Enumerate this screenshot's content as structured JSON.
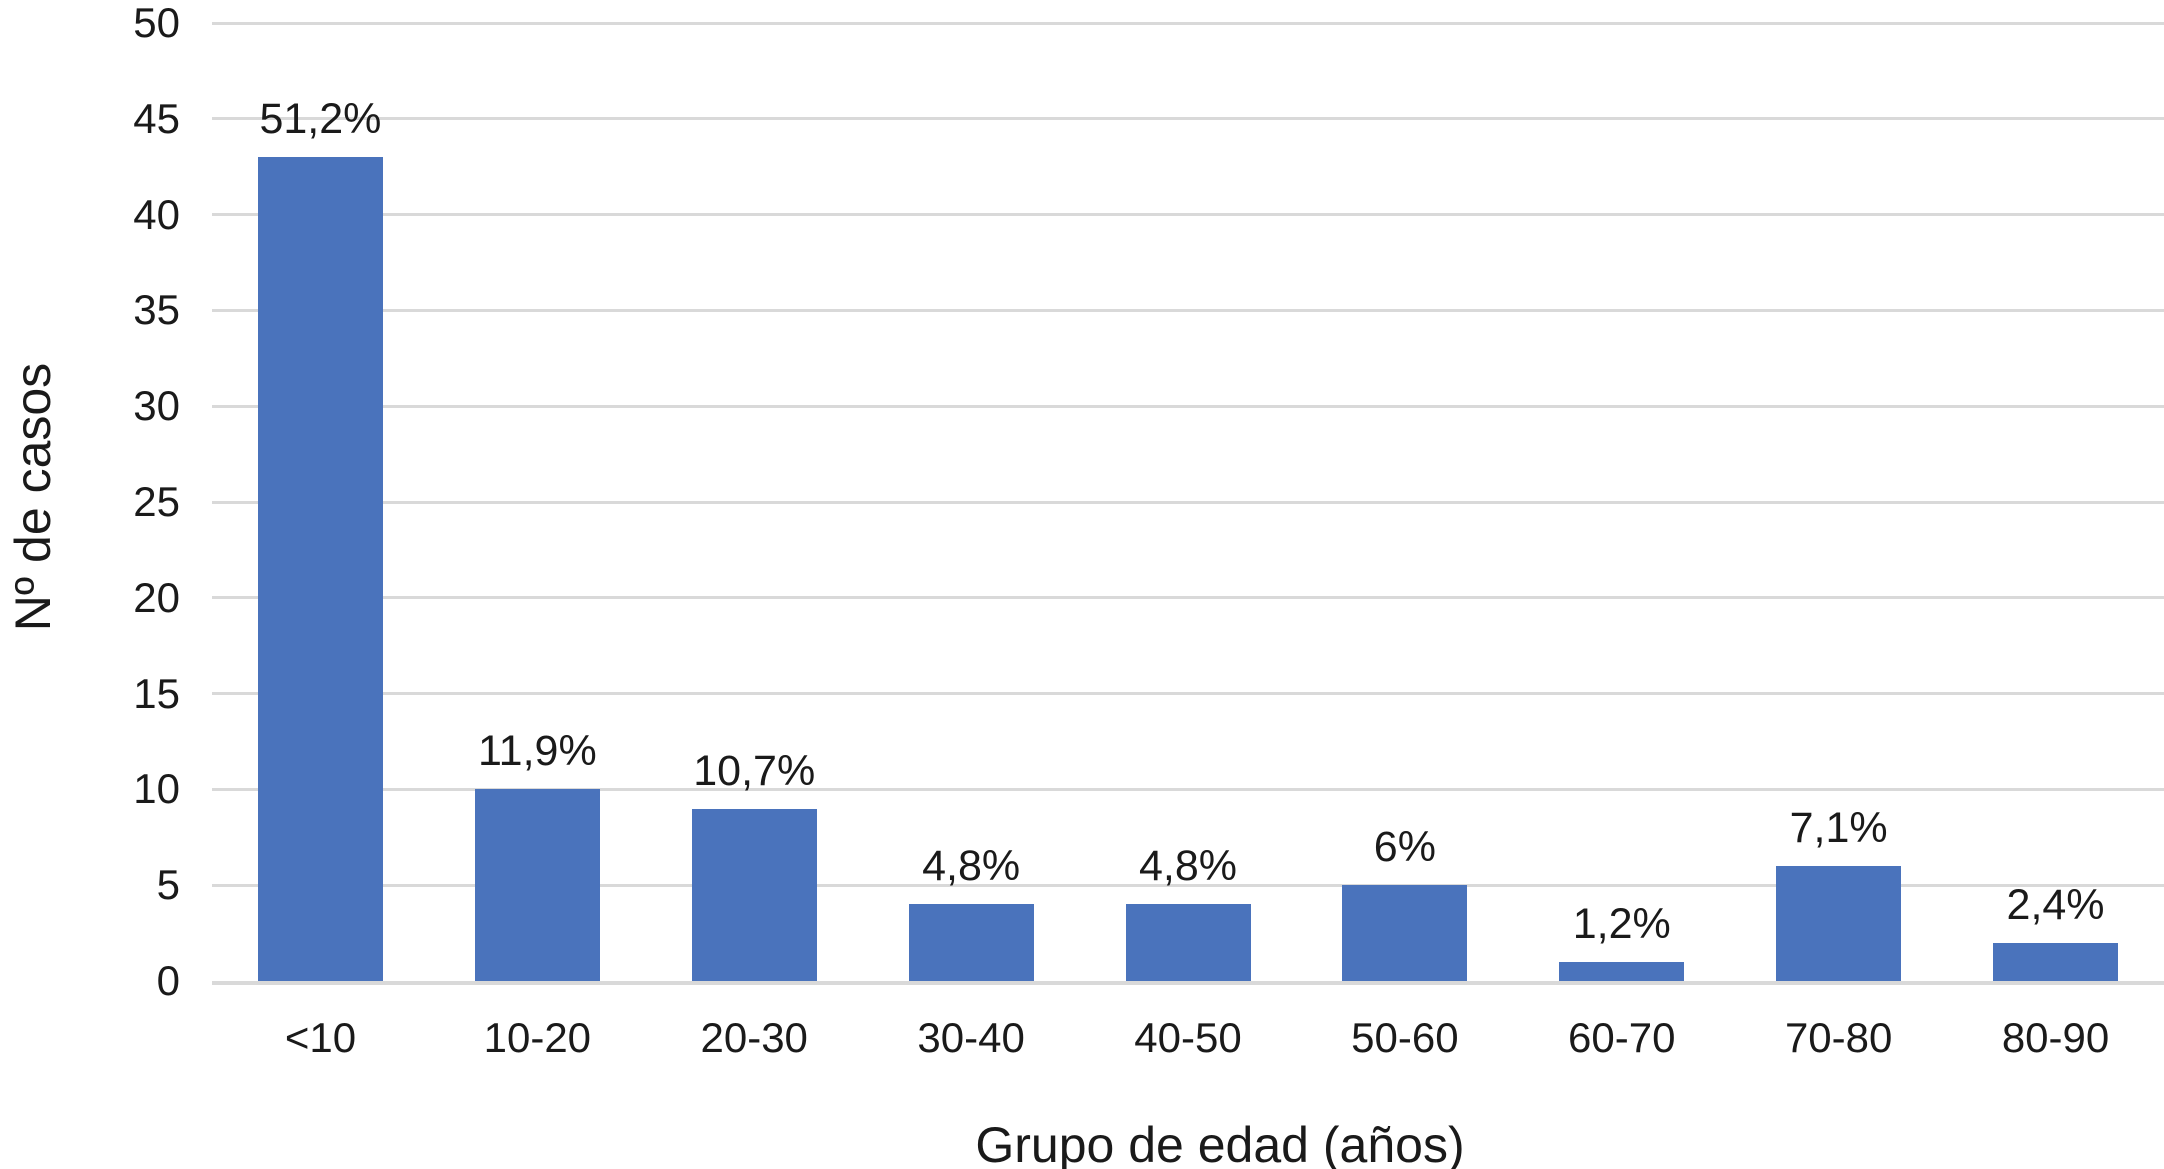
{
  "chart_data": {
    "type": "bar",
    "categories": [
      "<10",
      "10-20",
      "20-30",
      "30-40",
      "40-50",
      "50-60",
      "60-70",
      "70-80",
      "80-90"
    ],
    "values": [
      43,
      10,
      9,
      4,
      4,
      5,
      1,
      6,
      2
    ],
    "bar_labels": [
      "51,2%",
      "11,9%",
      "10,7%",
      "4,8%",
      "4,8%",
      "6%",
      "1,2%",
      "7,1%",
      "2,4%"
    ],
    "xlabel": "Grupo de edad (años)",
    "ylabel": "Nº de casos",
    "ylim": [
      0,
      50
    ],
    "yticks": [
      0,
      5,
      10,
      15,
      20,
      25,
      30,
      35,
      40,
      45,
      50
    ],
    "grid": true,
    "legend_position": "none",
    "colors": {
      "bar": "#4a73bc",
      "gridline": "#d9d9d9",
      "text": "#1a1a1a",
      "background": "#ffffff"
    }
  }
}
